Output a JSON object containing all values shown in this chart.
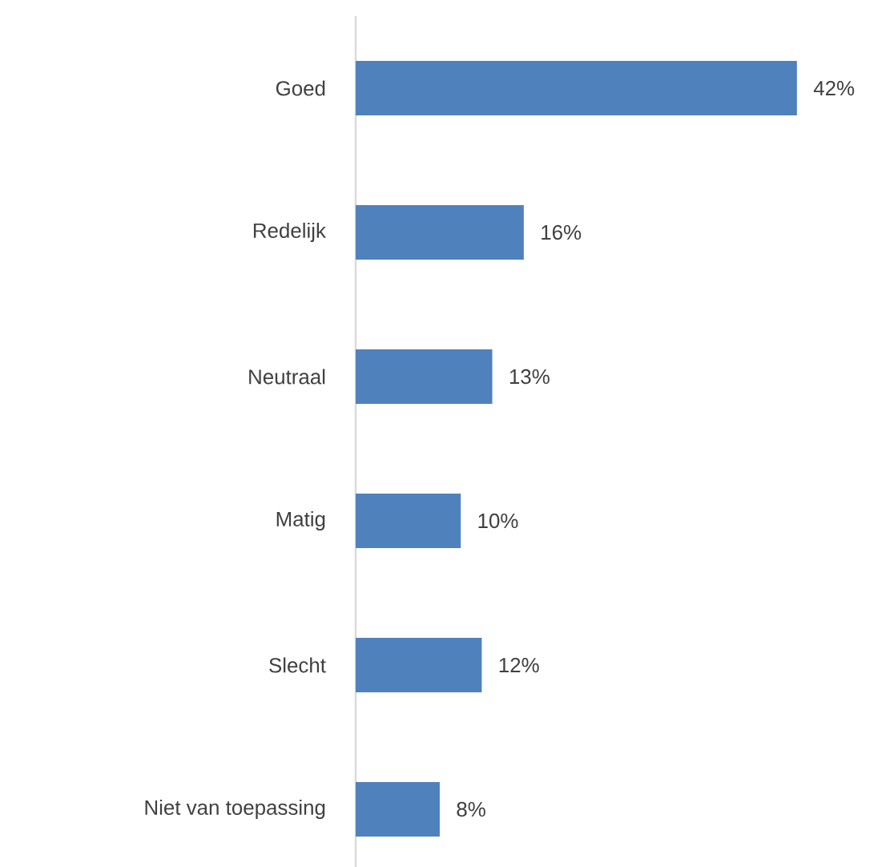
{
  "chart_data": {
    "type": "bar",
    "orientation": "horizontal",
    "categories": [
      "Goed",
      "Redelijk",
      "Neutraal",
      "Matig",
      "Slecht",
      "Niet van toepassing"
    ],
    "values": [
      42,
      16,
      13,
      10,
      12,
      8
    ],
    "value_labels": [
      "42%",
      "16%",
      "13%",
      "10%",
      "12%",
      "8%"
    ],
    "color": "#4f81bd"
  }
}
